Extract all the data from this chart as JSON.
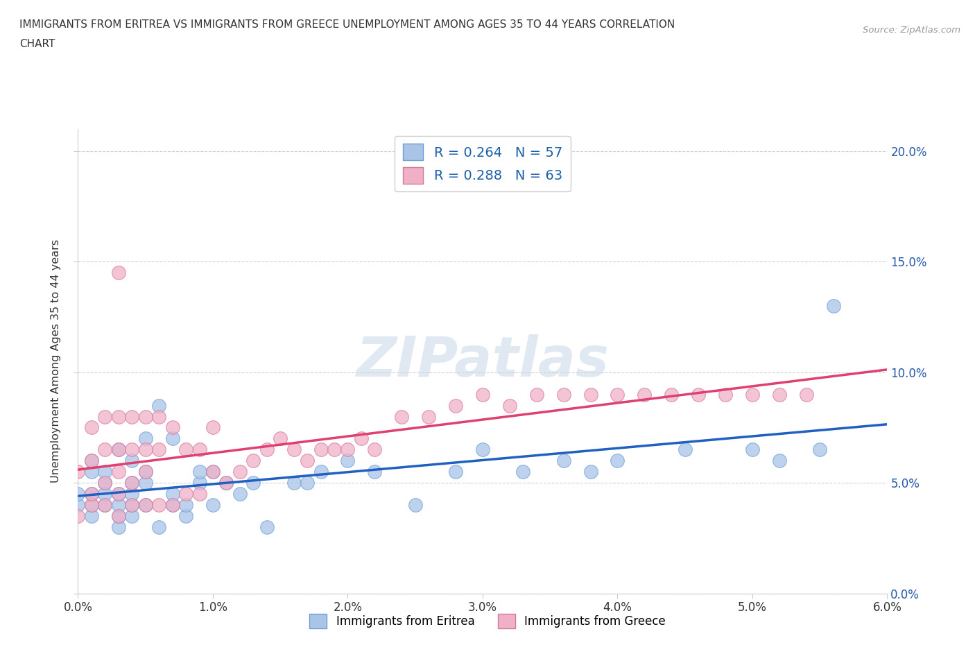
{
  "title_line1": "IMMIGRANTS FROM ERITREA VS IMMIGRANTS FROM GREECE UNEMPLOYMENT AMONG AGES 35 TO 44 YEARS CORRELATION",
  "title_line2": "CHART",
  "source": "Source: ZipAtlas.com",
  "ylabel": "Unemployment Among Ages 35 to 44 years",
  "xlim": [
    0.0,
    0.06
  ],
  "ylim": [
    0.0,
    0.21
  ],
  "xticks": [
    0.0,
    0.01,
    0.02,
    0.03,
    0.04,
    0.05,
    0.06
  ],
  "xticklabels": [
    "0.0%",
    "1.0%",
    "2.0%",
    "3.0%",
    "4.0%",
    "5.0%",
    "6.0%"
  ],
  "yticks": [
    0.0,
    0.05,
    0.1,
    0.15,
    0.2
  ],
  "yticklabels": [
    "0.0%",
    "5.0%",
    "10.0%",
    "15.0%",
    "20.0%"
  ],
  "eritrea_color": "#aac4e8",
  "eritrea_edge": "#6a9fd8",
  "greece_color": "#f0b0c8",
  "greece_edge": "#d87898",
  "trend_eritrea_color": "#2060c0",
  "trend_greece_color": "#e04070",
  "background_color": "#ffffff",
  "grid_color": "#d0d0d0",
  "tick_color": "#2255aa",
  "title_color": "#333333",
  "legend_text_color": "#1a5fa8",
  "R_eritrea": 0.264,
  "N_eritrea": 57,
  "R_greece": 0.288,
  "N_greece": 63,
  "eritrea_x": [
    0.0,
    0.0,
    0.001,
    0.001,
    0.001,
    0.001,
    0.001,
    0.002,
    0.002,
    0.002,
    0.002,
    0.003,
    0.003,
    0.003,
    0.003,
    0.003,
    0.004,
    0.004,
    0.004,
    0.004,
    0.004,
    0.005,
    0.005,
    0.005,
    0.005,
    0.006,
    0.006,
    0.007,
    0.007,
    0.007,
    0.008,
    0.008,
    0.009,
    0.009,
    0.01,
    0.01,
    0.011,
    0.012,
    0.013,
    0.014,
    0.016,
    0.017,
    0.018,
    0.02,
    0.022,
    0.025,
    0.028,
    0.03,
    0.033,
    0.036,
    0.038,
    0.04,
    0.045,
    0.05,
    0.052,
    0.055,
    0.056
  ],
  "eritrea_y": [
    0.04,
    0.045,
    0.035,
    0.04,
    0.045,
    0.055,
    0.06,
    0.04,
    0.045,
    0.05,
    0.055,
    0.03,
    0.035,
    0.04,
    0.045,
    0.065,
    0.035,
    0.04,
    0.045,
    0.05,
    0.06,
    0.04,
    0.05,
    0.055,
    0.07,
    0.03,
    0.085,
    0.04,
    0.045,
    0.07,
    0.035,
    0.04,
    0.05,
    0.055,
    0.04,
    0.055,
    0.05,
    0.045,
    0.05,
    0.03,
    0.05,
    0.05,
    0.055,
    0.06,
    0.055,
    0.04,
    0.055,
    0.065,
    0.055,
    0.06,
    0.055,
    0.06,
    0.065,
    0.065,
    0.06,
    0.065,
    0.13
  ],
  "greece_x": [
    0.0,
    0.0,
    0.001,
    0.001,
    0.001,
    0.001,
    0.002,
    0.002,
    0.002,
    0.002,
    0.003,
    0.003,
    0.003,
    0.003,
    0.003,
    0.004,
    0.004,
    0.004,
    0.004,
    0.005,
    0.005,
    0.005,
    0.005,
    0.006,
    0.006,
    0.006,
    0.007,
    0.007,
    0.008,
    0.008,
    0.009,
    0.009,
    0.01,
    0.01,
    0.011,
    0.012,
    0.013,
    0.014,
    0.015,
    0.016,
    0.017,
    0.018,
    0.019,
    0.02,
    0.021,
    0.022,
    0.024,
    0.026,
    0.028,
    0.03,
    0.032,
    0.034,
    0.036,
    0.038,
    0.04,
    0.042,
    0.044,
    0.046,
    0.048,
    0.05,
    0.052,
    0.054,
    0.003
  ],
  "greece_y": [
    0.035,
    0.055,
    0.04,
    0.045,
    0.06,
    0.075,
    0.04,
    0.05,
    0.065,
    0.08,
    0.035,
    0.045,
    0.055,
    0.065,
    0.08,
    0.04,
    0.05,
    0.065,
    0.08,
    0.04,
    0.055,
    0.065,
    0.08,
    0.04,
    0.065,
    0.08,
    0.04,
    0.075,
    0.045,
    0.065,
    0.045,
    0.065,
    0.055,
    0.075,
    0.05,
    0.055,
    0.06,
    0.065,
    0.07,
    0.065,
    0.06,
    0.065,
    0.065,
    0.065,
    0.07,
    0.065,
    0.08,
    0.08,
    0.085,
    0.09,
    0.085,
    0.09,
    0.09,
    0.09,
    0.09,
    0.09,
    0.09,
    0.09,
    0.09,
    0.09,
    0.09,
    0.09,
    0.145
  ]
}
